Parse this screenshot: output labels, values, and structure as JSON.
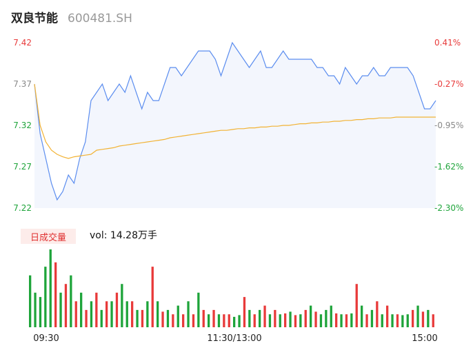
{
  "header": {
    "stock_name": "双良节能",
    "stock_code": "600481.SH"
  },
  "volume_panel": {
    "tag_label": "日成交量",
    "vol_label": "vol: 14.28万手"
  },
  "colors": {
    "price_line": "#5b8def",
    "avg_line": "#f2b233",
    "up": "#e83a3a",
    "down": "#1ea43a",
    "neutral": "#888888",
    "area_fill": "#f3f6fd"
  },
  "chart_data": {
    "type": "line",
    "title": "",
    "x_tick_labels": [
      "09:30",
      "11:30/13:00",
      "15:00"
    ],
    "y_left_ticks": [
      "7.42",
      "7.37",
      "7.32",
      "7.27",
      "7.22"
    ],
    "y_right_ticks": [
      "0.41%",
      "-0.27%",
      "-0.95%",
      "-1.62%",
      "-2.30%"
    ],
    "ylim": [
      7.22,
      7.42
    ],
    "prev_close": 7.39,
    "series": [
      {
        "values": [
          7.37,
          7.31,
          7.28,
          7.25,
          7.23,
          7.24,
          7.26,
          7.25,
          7.28,
          7.3,
          7.35,
          7.36,
          7.37,
          7.35,
          7.36,
          7.37,
          7.36,
          7.38,
          7.36,
          7.34,
          7.36,
          7.35,
          7.35,
          7.37,
          7.39,
          7.39,
          7.38,
          7.39,
          7.4,
          7.41,
          7.41,
          7.41,
          7.4,
          7.38,
          7.4,
          7.42,
          7.41,
          7.4,
          7.39,
          7.4,
          7.41,
          7.39,
          7.39,
          7.4,
          7.41,
          7.4,
          7.4,
          7.4,
          7.4,
          7.4,
          7.39,
          7.39,
          7.38,
          7.38,
          7.37,
          7.39,
          7.38,
          7.37,
          7.38,
          7.38,
          7.39,
          7.38,
          7.38,
          7.39,
          7.39,
          7.39,
          7.39,
          7.38,
          7.36,
          7.34,
          7.34,
          7.35
        ]
      },
      {
        "values": [
          7.37,
          7.32,
          7.3,
          7.29,
          7.285,
          7.282,
          7.28,
          7.282,
          7.283,
          7.284,
          7.285,
          7.29,
          7.291,
          7.292,
          7.293,
          7.295,
          7.296,
          7.297,
          7.298,
          7.299,
          7.3,
          7.301,
          7.302,
          7.303,
          7.305,
          7.306,
          7.307,
          7.308,
          7.309,
          7.31,
          7.311,
          7.312,
          7.313,
          7.314,
          7.314,
          7.315,
          7.316,
          7.316,
          7.317,
          7.317,
          7.318,
          7.318,
          7.319,
          7.319,
          7.32,
          7.32,
          7.321,
          7.322,
          7.322,
          7.323,
          7.323,
          7.324,
          7.324,
          7.325,
          7.325,
          7.326,
          7.326,
          7.327,
          7.327,
          7.328,
          7.328,
          7.329,
          7.329,
          7.329,
          7.33,
          7.33,
          7.33,
          7.33,
          7.33,
          7.33,
          7.33,
          7.33
        ]
      }
    ],
    "volume": {
      "values": [
        6,
        4,
        3.5,
        7,
        9,
        7.5,
        4,
        5,
        6,
        3,
        4,
        2,
        3,
        4,
        2,
        3,
        3,
        4,
        5,
        3,
        3,
        2,
        2,
        3,
        7,
        3,
        1.8,
        2,
        1.5,
        2.5,
        1.5,
        3,
        1.5,
        4,
        2,
        1.5,
        2,
        1.5,
        1.5,
        1.5,
        1.2,
        1.4,
        3.5,
        2,
        1.5,
        2,
        2.5,
        1.5,
        2,
        1.5,
        1.6,
        1.8,
        1.4,
        1.5,
        2,
        2.5,
        1.8,
        1.5,
        2,
        2.5,
        1.6,
        1.5,
        1.5,
        1.6,
        5,
        2.5,
        1.5,
        2,
        3,
        1.5,
        2.5,
        1.5,
        1.5,
        1.4,
        1.5,
        2,
        2.5,
        1.8,
        2,
        1.5
      ],
      "directions": [
        "d",
        "d",
        "d",
        "d",
        "d",
        "u",
        "d",
        "u",
        "d",
        "u",
        "d",
        "u",
        "d",
        "u",
        "d",
        "u",
        "d",
        "u",
        "d",
        "d",
        "u",
        "d",
        "u",
        "d",
        "u",
        "d",
        "u",
        "d",
        "u",
        "d",
        "u",
        "d",
        "u",
        "d",
        "u",
        "d",
        "u",
        "d",
        "u",
        "u",
        "d",
        "d",
        "u",
        "d",
        "u",
        "d",
        "u",
        "d",
        "u",
        "d",
        "u",
        "d",
        "u",
        "d",
        "u",
        "d",
        "u",
        "d",
        "d",
        "d",
        "u",
        "d",
        "u",
        "d",
        "u",
        "d",
        "u",
        "d",
        "u",
        "d",
        "u",
        "d",
        "u",
        "d",
        "d",
        "u",
        "d",
        "u",
        "d",
        "u"
      ]
    }
  }
}
